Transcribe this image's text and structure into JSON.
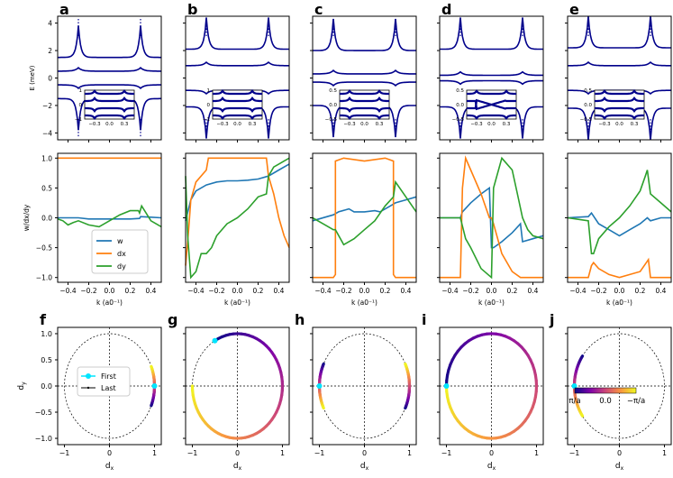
{
  "chart_data": {
    "type": "line",
    "panel_letters": [
      "a",
      "b",
      "c",
      "d",
      "e",
      "f",
      "g",
      "h",
      "i",
      "j"
    ],
    "row1": {
      "ylabel": "E (meV)",
      "ytick_labels": [
        "4",
        "2",
        "0",
        "−2",
        "−4"
      ],
      "ytick_values": [
        4,
        2,
        0,
        -2,
        -4
      ],
      "ylim": [
        -4.5,
        4.5
      ],
      "xlim": [
        -0.5,
        0.5
      ],
      "line_color": "#00008b",
      "panels": [
        {
          "letter": "a",
          "bands": [
            1.5,
            0.5,
            -0.5,
            -1.5
          ],
          "inset_ylim": [
            -1,
            1
          ],
          "inset_yticks": [
            "1",
            "0",
            "−1"
          ],
          "inset_xticks": [
            "−0.3",
            "0.0",
            "0.3"
          ]
        },
        {
          "letter": "b",
          "bands": [
            2.1,
            0.9,
            -0.9,
            -2.1
          ],
          "inset_ylim": [
            -1,
            1
          ],
          "inset_yticks": [
            "1",
            "0",
            "−1"
          ],
          "inset_xticks": [
            "−0.3",
            "0.0",
            "0.3"
          ]
        },
        {
          "letter": "c",
          "bands": [
            2.0,
            0.3,
            -0.3,
            -2.0
          ],
          "inset_ylim": [
            -0.5,
            0.5
          ],
          "inset_yticks": [
            "0.5",
            "0.0",
            "−0.5"
          ],
          "inset_xticks": [
            "−0.3",
            "0.0",
            "0.3"
          ]
        },
        {
          "letter": "d",
          "bands": [
            2.1,
            0.2,
            -0.2,
            -2.1
          ],
          "inset_ylim": [
            -0.5,
            0.5
          ],
          "inset_yticks": [
            "0.5",
            "0.0",
            "−0.5"
          ],
          "inset_xticks": [
            "−0.3",
            "0.0",
            "0.3"
          ]
        },
        {
          "letter": "e",
          "bands": [
            2.2,
            0.9,
            -0.9,
            -2.2
          ],
          "inset_ylim": [
            -0.5,
            0.5
          ],
          "inset_yticks": [
            "0.5",
            "0.0",
            "−0.5"
          ],
          "inset_xticks": [
            "−0.3",
            "0.0",
            "0.3"
          ]
        }
      ]
    },
    "row2": {
      "ylabel": "w/dx/dy",
      "xlabel": "k (a0⁻¹)",
      "xtick_labels": [
        "−0.4",
        "−0.2",
        "0.0",
        "0.2",
        "0.4"
      ],
      "xtick_values": [
        -0.4,
        -0.2,
        0,
        0.2,
        0.4
      ],
      "ytick_labels": [
        "1.0",
        "0.5",
        "0.0",
        "−0.5",
        "−1.0"
      ],
      "ytick_values": [
        1,
        0.5,
        0,
        -0.5,
        -1
      ],
      "xlim": [
        -0.5,
        0.5
      ],
      "ylim": [
        -1.08,
        1.08
      ],
      "legend": [
        {
          "name": "w",
          "color": "#1f77b4"
        },
        {
          "name": "dx",
          "color": "#ff7f0e"
        },
        {
          "name": "dy",
          "color": "#2ca02c"
        }
      ],
      "panels": [
        {
          "letter": "a",
          "series": [
            {
              "name": "w",
              "x": [
                -0.5,
                -0.3,
                -0.2,
                -0.1,
                0,
                0.1,
                0.2,
                0.29,
                0.3,
                0.4,
                0.5
              ],
              "y": [
                0,
                0,
                -0.02,
                -0.02,
                -0.02,
                -0.02,
                -0.02,
                -0.01,
                0.02,
                0.01,
                0.0
              ]
            },
            {
              "name": "dx",
              "x": [
                -0.5,
                -0.3,
                0,
                0.3,
                0.5
              ],
              "y": [
                1.0,
                1.0,
                1.0,
                1.0,
                1.0
              ]
            },
            {
              "name": "dy",
              "x": [
                -0.5,
                -0.45,
                -0.4,
                -0.35,
                -0.3,
                -0.2,
                -0.1,
                0,
                0.1,
                0.2,
                0.28,
                0.29,
                0.31,
                0.4,
                0.5
              ],
              "y": [
                -0.02,
                -0.05,
                -0.12,
                -0.08,
                -0.05,
                -0.12,
                -0.15,
                -0.05,
                0.05,
                0.12,
                0.12,
                0.08,
                0.2,
                -0.05,
                -0.15
              ]
            }
          ]
        },
        {
          "letter": "b",
          "series": [
            {
              "name": "w",
              "x": [
                -0.5,
                -0.45,
                -0.4,
                -0.3,
                -0.2,
                -0.1,
                0,
                0.1,
                0.2,
                0.3,
                0.4,
                0.5
              ],
              "y": [
                -0.05,
                0.3,
                0.45,
                0.55,
                0.6,
                0.62,
                0.62,
                0.63,
                0.65,
                0.7,
                0.8,
                0.9
              ]
            },
            {
              "name": "dx",
              "x": [
                -0.5,
                -0.47,
                -0.45,
                -0.4,
                -0.3,
                -0.28,
                -0.25,
                0,
                0.28,
                0.3,
                0.35,
                0.4,
                0.45,
                0.5
              ],
              "y": [
                -0.8,
                -0.2,
                0.3,
                0.6,
                0.8,
                1.0,
                1.0,
                1.0,
                1.0,
                0.7,
                0.4,
                0.0,
                -0.3,
                -0.5
              ]
            },
            {
              "name": "dy",
              "x": [
                -0.5,
                -0.48,
                -0.45,
                -0.4,
                -0.35,
                -0.3,
                -0.25,
                -0.2,
                -0.1,
                0,
                0.1,
                0.2,
                0.28,
                0.3,
                0.35,
                0.4,
                0.45,
                0.5
              ],
              "y": [
                0.7,
                -0.3,
                -1.0,
                -0.9,
                -0.6,
                -0.6,
                -0.5,
                -0.3,
                -0.1,
                0.0,
                0.15,
                0.35,
                0.4,
                0.7,
                0.85,
                0.9,
                0.95,
                1.0
              ]
            }
          ]
        },
        {
          "letter": "c",
          "series": [
            {
              "name": "w",
              "x": [
                -0.5,
                -0.3,
                -0.25,
                -0.15,
                -0.1,
                0,
                0.1,
                0.15,
                0.25,
                0.3,
                0.4,
                0.5
              ],
              "y": [
                -0.05,
                0.05,
                0.1,
                0.15,
                0.1,
                0.1,
                0.12,
                0.1,
                0.2,
                0.25,
                0.3,
                0.35
              ]
            },
            {
              "name": "dx",
              "x": [
                -0.5,
                -0.3,
                -0.28,
                -0.28,
                -0.2,
                0,
                0.2,
                0.28,
                0.28,
                0.3,
                0.5
              ],
              "y": [
                -1.0,
                -1.0,
                -0.95,
                0.95,
                1.0,
                0.95,
                1.0,
                0.95,
                -0.95,
                -1.0,
                -1.0
              ]
            },
            {
              "name": "dy",
              "x": [
                -0.5,
                -0.4,
                -0.3,
                -0.28,
                -0.2,
                -0.1,
                0,
                0.1,
                0.2,
                0.28,
                0.3,
                0.4,
                0.5
              ],
              "y": [
                0.0,
                -0.1,
                -0.2,
                -0.2,
                -0.45,
                -0.35,
                -0.2,
                -0.05,
                0.2,
                0.35,
                0.6,
                0.35,
                0.1
              ]
            }
          ]
        },
        {
          "letter": "d",
          "series": [
            {
              "name": "w",
              "x": [
                -0.5,
                -0.3,
                -0.28,
                -0.2,
                -0.1,
                -0.02,
                0,
                0.02,
                0.1,
                0.2,
                0.28,
                0.3,
                0.4,
                0.5
              ],
              "y": [
                0.0,
                0.0,
                0.1,
                0.25,
                0.4,
                0.5,
                -0.5,
                -0.5,
                -0.4,
                -0.25,
                -0.1,
                -0.4,
                -0.35,
                -0.3
              ]
            },
            {
              "name": "dx",
              "x": [
                -0.5,
                -0.3,
                -0.28,
                -0.25,
                -0.2,
                -0.1,
                -0.02,
                0,
                0.02,
                0.1,
                0.2,
                0.28,
                0.3,
                0.5
              ],
              "y": [
                -1.0,
                -1.0,
                0.5,
                1.0,
                0.8,
                0.4,
                0.0,
                0.0,
                -0.1,
                -0.6,
                -0.9,
                -1.0,
                -1.0,
                -1.0
              ]
            },
            {
              "name": "dy",
              "x": [
                -0.5,
                -0.3,
                -0.25,
                -0.2,
                -0.1,
                0,
                0.02,
                0.1,
                0.2,
                0.25,
                0.3,
                0.35,
                0.4,
                0.5
              ],
              "y": [
                0.0,
                0.0,
                -0.35,
                -0.5,
                -0.85,
                -1.0,
                0.5,
                1.0,
                0.8,
                0.4,
                0.0,
                -0.2,
                -0.3,
                -0.35
              ]
            }
          ]
        },
        {
          "letter": "e",
          "series": [
            {
              "name": "w",
              "x": [
                -0.5,
                -0.3,
                -0.27,
                -0.2,
                -0.1,
                0,
                0.1,
                0.2,
                0.27,
                0.3,
                0.4,
                0.5
              ],
              "y": [
                0.0,
                0.02,
                0.08,
                -0.1,
                -0.2,
                -0.3,
                -0.2,
                -0.1,
                0.0,
                -0.05,
                0.0,
                0.0
              ]
            },
            {
              "name": "dx",
              "x": [
                -0.5,
                -0.3,
                -0.27,
                -0.25,
                -0.2,
                -0.1,
                0,
                0.1,
                0.2,
                0.26,
                0.28,
                0.3,
                0.4,
                0.5
              ],
              "y": [
                -1.0,
                -1.0,
                -0.8,
                -0.75,
                -0.85,
                -0.95,
                -1.0,
                -0.95,
                -0.9,
                -0.75,
                -0.7,
                -1.0,
                -1.0,
                -1.0
              ]
            },
            {
              "name": "dy",
              "x": [
                -0.5,
                -0.3,
                -0.27,
                -0.25,
                -0.2,
                -0.1,
                0,
                0.1,
                0.2,
                0.25,
                0.27,
                0.3,
                0.4,
                0.5
              ],
              "y": [
                0.0,
                -0.05,
                -0.6,
                -0.6,
                -0.35,
                -0.15,
                0.0,
                0.2,
                0.45,
                0.7,
                0.8,
                0.4,
                0.25,
                0.1
              ]
            }
          ]
        }
      ]
    },
    "row3": {
      "xlabel": "dx",
      "ylabel": "dy",
      "xtick_labels": [
        "−1",
        "0",
        "1"
      ],
      "xtick_values": [
        -1,
        0,
        1
      ],
      "ytick_labels": [
        "1.0",
        "0.5",
        "0.0",
        "−0.5",
        "−1.0"
      ],
      "ytick_values": [
        1,
        0.5,
        0,
        -0.5,
        -1
      ],
      "xlim": [
        -1.15,
        1.15
      ],
      "ylim": [
        -1.12,
        1.12
      ],
      "legend": [
        {
          "name": "First",
          "color": "#00e5ff"
        },
        {
          "name": "Last",
          "color": "#000000"
        }
      ],
      "colorbar": {
        "labels": [
          "π/a",
          "0.0",
          "−π/a"
        ],
        "colormap": "plasma"
      },
      "panels": [
        {
          "letter": "f",
          "arcs": [
            {
              "from": -22,
              "to": 22
            }
          ],
          "first_deg": 0
        },
        {
          "letter": "g",
          "arcs": [
            {
              "from": 120,
              "to": -180
            }
          ],
          "first_deg": 120
        },
        {
          "letter": "h",
          "arcs": [
            {
              "from": 155,
              "to": 205
            },
            {
              "from": -25,
              "to": 25
            }
          ],
          "first_deg": 180
        },
        {
          "letter": "i",
          "arcs": [
            {
              "from": 180,
              "to": -180
            }
          ],
          "first_deg": 180
        },
        {
          "letter": "j",
          "arcs": [
            {
              "from": 145,
              "to": 215
            }
          ],
          "first_deg": 180
        }
      ]
    }
  }
}
